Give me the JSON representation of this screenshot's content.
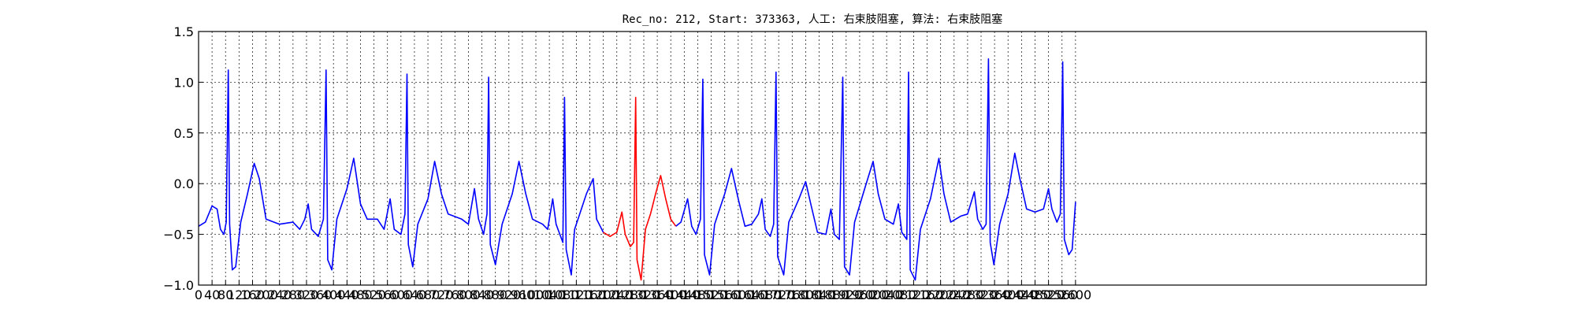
{
  "chart_data": {
    "type": "line",
    "title": "Rec_no: 212, Start: 373363, 人工: 右束肢阻塞, 算法: 右束肢阻塞",
    "xlabel": "",
    "ylabel": "",
    "xlim": [
      0,
      3640
    ],
    "ylim": [
      -1.0,
      1.5
    ],
    "grid": true,
    "yticks": [
      -1.0,
      -0.5,
      0.0,
      0.5,
      1.0,
      1.5
    ],
    "ytick_labels": [
      "−1.0",
      "−0.5",
      "0.0",
      "0.5",
      "1.0",
      "1.5"
    ],
    "xticks": [
      0,
      40,
      80,
      120,
      160,
      200,
      240,
      280,
      320,
      360,
      400,
      440,
      480,
      520,
      560,
      600,
      640,
      680,
      720,
      760,
      800,
      840,
      880,
      920,
      960,
      1000,
      1040,
      1080,
      1120,
      1160,
      1200,
      1240,
      1280,
      1320,
      1360,
      1400,
      1440,
      1480,
      1520,
      1560,
      1600,
      1640,
      1680,
      1720,
      1760,
      1800,
      1840,
      1880,
      1920,
      1960,
      2000,
      2040,
      2080,
      2120,
      2160,
      2200,
      2240,
      2280,
      2320,
      2360,
      2400,
      2440,
      2480,
      2520,
      2560,
      2600
    ],
    "colors": {
      "normal": "#0000ff",
      "highlight": "#ff0000"
    },
    "segments": [
      {
        "color": "normal",
        "points": [
          [
            0,
            -0.42
          ],
          [
            20,
            -0.38
          ],
          [
            40,
            -0.22
          ],
          [
            55,
            -0.25
          ],
          [
            65,
            -0.45
          ],
          [
            75,
            -0.5
          ],
          [
            82,
            -0.38
          ],
          [
            88,
            1.12
          ],
          [
            92,
            -0.4
          ],
          [
            100,
            -0.85
          ],
          [
            110,
            -0.82
          ],
          [
            125,
            -0.38
          ],
          [
            145,
            -0.1
          ],
          [
            165,
            0.2
          ],
          [
            180,
            0.05
          ],
          [
            200,
            -0.35
          ],
          [
            240,
            -0.4
          ],
          [
            280,
            -0.38
          ],
          [
            300,
            -0.45
          ],
          [
            315,
            -0.35
          ],
          [
            325,
            -0.2
          ],
          [
            335,
            -0.45
          ],
          [
            355,
            -0.52
          ],
          [
            370,
            -0.35
          ],
          [
            378,
            1.12
          ],
          [
            383,
            -0.75
          ],
          [
            395,
            -0.85
          ],
          [
            410,
            -0.35
          ],
          [
            440,
            -0.05
          ],
          [
            460,
            0.25
          ],
          [
            480,
            -0.2
          ],
          [
            500,
            -0.35
          ],
          [
            530,
            -0.35
          ],
          [
            550,
            -0.45
          ],
          [
            568,
            -0.15
          ],
          [
            580,
            -0.45
          ],
          [
            600,
            -0.5
          ],
          [
            612,
            -0.3
          ],
          [
            618,
            1.08
          ],
          [
            622,
            -0.6
          ],
          [
            635,
            -0.82
          ],
          [
            650,
            -0.4
          ],
          [
            680,
            -0.15
          ],
          [
            700,
            0.22
          ],
          [
            720,
            -0.1
          ],
          [
            740,
            -0.3
          ],
          [
            780,
            -0.35
          ],
          [
            800,
            -0.4
          ],
          [
            818,
            -0.05
          ],
          [
            830,
            -0.35
          ],
          [
            845,
            -0.5
          ],
          [
            855,
            -0.3
          ],
          [
            860,
            1.05
          ],
          [
            865,
            -0.6
          ],
          [
            880,
            -0.8
          ],
          [
            900,
            -0.4
          ],
          [
            930,
            -0.1
          ],
          [
            950,
            0.22
          ],
          [
            970,
            -0.1
          ],
          [
            990,
            -0.35
          ],
          [
            1020,
            -0.4
          ],
          [
            1035,
            -0.45
          ],
          [
            1050,
            -0.15
          ],
          [
            1060,
            -0.4
          ],
          [
            1080,
            -0.58
          ],
          [
            1085,
            0.85
          ],
          [
            1090,
            -0.65
          ],
          [
            1105,
            -0.9
          ],
          [
            1115,
            -0.45
          ],
          [
            1135,
            -0.25
          ],
          [
            1150,
            -0.1
          ],
          [
            1170,
            0.05
          ],
          [
            1180,
            -0.35
          ],
          [
            1200,
            -0.48
          ]
        ]
      },
      {
        "color": "highlight",
        "points": [
          [
            1200,
            -0.48
          ],
          [
            1220,
            -0.52
          ],
          [
            1240,
            -0.48
          ],
          [
            1255,
            -0.28
          ],
          [
            1265,
            -0.5
          ],
          [
            1280,
            -0.62
          ],
          [
            1290,
            -0.58
          ],
          [
            1296,
            0.85
          ],
          [
            1300,
            -0.75
          ],
          [
            1312,
            -0.95
          ],
          [
            1325,
            -0.45
          ],
          [
            1340,
            -0.3
          ],
          [
            1355,
            -0.1
          ],
          [
            1370,
            0.08
          ],
          [
            1385,
            -0.15
          ],
          [
            1400,
            -0.35
          ],
          [
            1415,
            -0.42
          ]
        ]
      },
      {
        "color": "normal",
        "points": [
          [
            1415,
            -0.42
          ],
          [
            1430,
            -0.38
          ],
          [
            1450,
            -0.15
          ],
          [
            1462,
            -0.42
          ],
          [
            1475,
            -0.5
          ],
          [
            1488,
            -0.35
          ],
          [
            1495,
            1.03
          ],
          [
            1500,
            -0.7
          ],
          [
            1515,
            -0.9
          ],
          [
            1530,
            -0.4
          ],
          [
            1560,
            -0.1
          ],
          [
            1580,
            0.15
          ],
          [
            1600,
            -0.15
          ],
          [
            1620,
            -0.42
          ],
          [
            1640,
            -0.4
          ],
          [
            1660,
            -0.3
          ],
          [
            1670,
            -0.15
          ],
          [
            1680,
            -0.45
          ],
          [
            1695,
            -0.52
          ],
          [
            1705,
            -0.4
          ],
          [
            1712,
            1.1
          ],
          [
            1717,
            -0.72
          ],
          [
            1735,
            -0.9
          ],
          [
            1750,
            -0.38
          ],
          [
            1780,
            -0.15
          ],
          [
            1800,
            0.02
          ],
          [
            1815,
            -0.2
          ],
          [
            1835,
            -0.48
          ],
          [
            1860,
            -0.5
          ],
          [
            1875,
            -0.25
          ],
          [
            1885,
            -0.5
          ],
          [
            1900,
            -0.55
          ],
          [
            1910,
            1.05
          ],
          [
            1915,
            -0.82
          ],
          [
            1930,
            -0.9
          ],
          [
            1945,
            -0.38
          ],
          [
            1975,
            -0.05
          ],
          [
            2000,
            0.22
          ],
          [
            2015,
            -0.1
          ],
          [
            2035,
            -0.35
          ],
          [
            2060,
            -0.4
          ],
          [
            2075,
            -0.2
          ],
          [
            2085,
            -0.48
          ],
          [
            2100,
            -0.55
          ],
          [
            2105,
            1.1
          ],
          [
            2110,
            -0.85
          ],
          [
            2125,
            -0.95
          ],
          [
            2140,
            -0.45
          ],
          [
            2170,
            -0.15
          ],
          [
            2195,
            0.25
          ],
          [
            2210,
            -0.1
          ],
          [
            2230,
            -0.38
          ],
          [
            2260,
            -0.32
          ],
          [
            2280,
            -0.3
          ],
          [
            2300,
            -0.08
          ],
          [
            2310,
            -0.35
          ],
          [
            2325,
            -0.45
          ],
          [
            2335,
            -0.4
          ],
          [
            2342,
            1.23
          ],
          [
            2347,
            -0.58
          ],
          [
            2358,
            -0.8
          ],
          [
            2375,
            -0.4
          ],
          [
            2400,
            -0.1
          ],
          [
            2420,
            0.3
          ],
          [
            2435,
            0.05
          ],
          [
            2455,
            -0.25
          ],
          [
            2480,
            -0.28
          ],
          [
            2505,
            -0.25
          ],
          [
            2520,
            -0.05
          ],
          [
            2530,
            -0.25
          ],
          [
            2545,
            -0.38
          ],
          [
            2555,
            -0.3
          ],
          [
            2562,
            1.2
          ],
          [
            2567,
            -0.55
          ],
          [
            2580,
            -0.7
          ],
          [
            2590,
            -0.65
          ],
          [
            2600,
            -0.18
          ]
        ]
      }
    ]
  }
}
